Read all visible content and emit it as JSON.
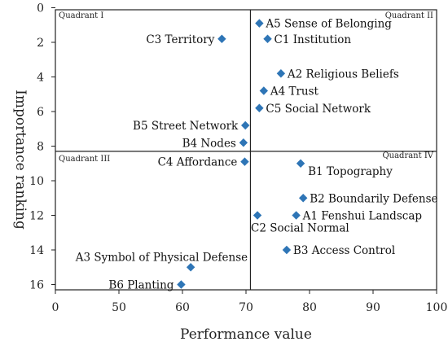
{
  "chart_data": {
    "type": "scatter",
    "xlabel": "Performance value",
    "ylabel": "Importance ranking",
    "xlim": [
      0,
      100
    ],
    "ylim": [
      0,
      16.5
    ],
    "y_inverted": true,
    "x_ticks": [
      "0",
      "50",
      "60",
      "70",
      "80",
      "90",
      "100"
    ],
    "x_tick_values": [
      0,
      50,
      60,
      70,
      80,
      90,
      100
    ],
    "y_ticks": [
      "0",
      "2",
      "4",
      "6",
      "8",
      "10",
      "12",
      "14",
      "16"
    ],
    "y_tick_values": [
      0,
      2,
      4,
      6,
      8,
      10,
      12,
      14,
      16
    ],
    "x_axis_break": [
      0,
      50
    ],
    "quadrant_lines": {
      "x": 70.7,
      "y": 8.3
    },
    "quadrants": [
      "Quadrant I",
      "Quadrant II",
      "Quadrant III",
      "Quadrant IV"
    ],
    "marker_color": "#2e75b6",
    "points": [
      {
        "label": "A5 Sense of Belonging",
        "x": 72.1,
        "y": 0.9,
        "side": "right"
      },
      {
        "label": "C1 Institution",
        "x": 73.4,
        "y": 1.8,
        "side": "right"
      },
      {
        "label": "C3 Territory",
        "x": 66.2,
        "y": 1.8,
        "side": "left"
      },
      {
        "label": "A2 Religious Beliefs",
        "x": 75.5,
        "y": 3.8,
        "side": "right"
      },
      {
        "label": "A4 Trust",
        "x": 72.8,
        "y": 4.8,
        "side": "right"
      },
      {
        "label": "C5 Social Network",
        "x": 72.1,
        "y": 5.8,
        "side": "right"
      },
      {
        "label": "B5 Street Network",
        "x": 69.9,
        "y": 6.8,
        "side": "left"
      },
      {
        "label": "B4 Nodes",
        "x": 69.6,
        "y": 7.8,
        "side": "left"
      },
      {
        "label": "C4 Affordance",
        "x": 69.8,
        "y": 8.9,
        "side": "left"
      },
      {
        "label": "B1 Topography",
        "x": 78.6,
        "y": 9.0,
        "side": "below-right"
      },
      {
        "label": "B2 Boundarily Defense",
        "x": 79.0,
        "y": 11.0,
        "side": "right"
      },
      {
        "label": "A1 Fenshui Landscap",
        "x": 77.9,
        "y": 12.0,
        "side": "right"
      },
      {
        "label": "C2 Social Normal",
        "x": 71.8,
        "y": 12.0,
        "side": "below"
      },
      {
        "label": "B3 Access Control",
        "x": 76.4,
        "y": 14.0,
        "side": "right"
      },
      {
        "label": "A3 Symbol of Physical Defense",
        "x": 61.3,
        "y": 15.0,
        "side": "above-left"
      },
      {
        "label": "B6 Planting",
        "x": 59.8,
        "y": 16.0,
        "side": "left"
      }
    ]
  }
}
